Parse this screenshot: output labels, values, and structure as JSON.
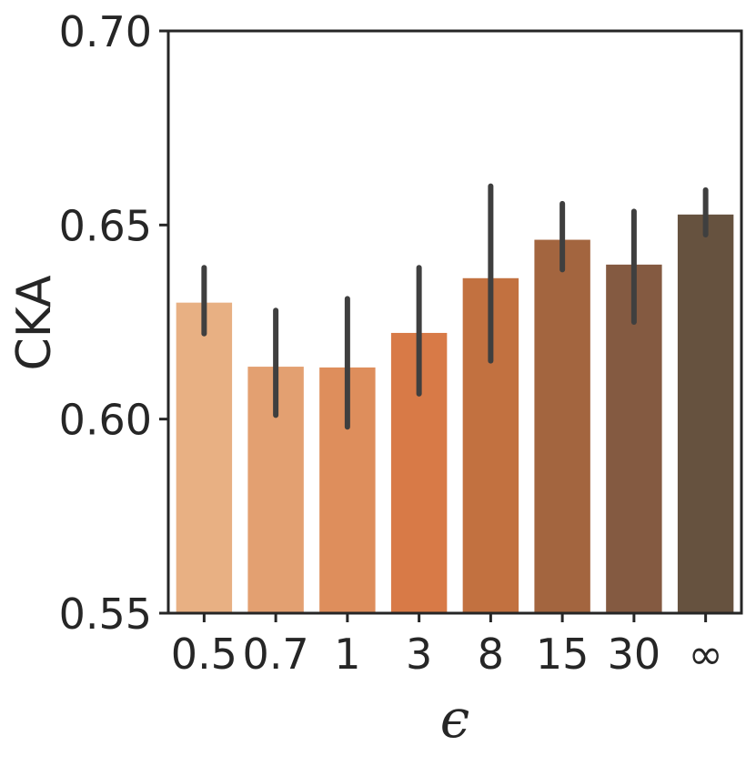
{
  "chart_data": {
    "type": "bar",
    "title": "",
    "xlabel": "ϵ",
    "ylabel": "CKA",
    "ylim": [
      0.55,
      0.7
    ],
    "yticks": [
      "0.55",
      "0.60",
      "0.65",
      "0.70"
    ],
    "categories": [
      "0.5",
      "0.7",
      "1",
      "3",
      "8",
      "15",
      "30",
      "∞"
    ],
    "values": [
      0.63,
      0.6135,
      0.6133,
      0.6222,
      0.6363,
      0.6462,
      0.6398,
      0.6527
    ],
    "error_low": [
      0.622,
      0.601,
      0.598,
      0.6065,
      0.615,
      0.6385,
      0.625,
      0.6475
    ],
    "error_high": [
      0.639,
      0.628,
      0.631,
      0.639,
      0.66,
      0.6555,
      0.6535,
      0.659
    ],
    "colors": [
      "#e8b083",
      "#e3a071",
      "#de8e5c",
      "#d87a47",
      "#c27140",
      "#a3653f",
      "#845a41",
      "#66523f"
    ],
    "errorbar_color": "#3f3f3f",
    "grid": false,
    "legend": "none"
  }
}
